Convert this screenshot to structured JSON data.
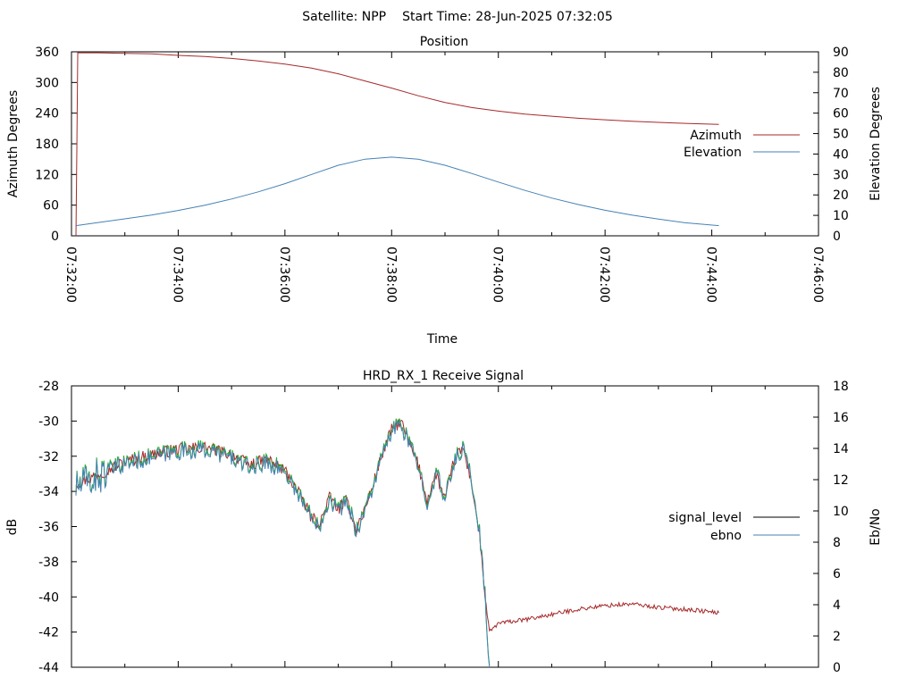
{
  "header": {
    "satellite_label": "Satellite: NPP",
    "start_time_label": "Start Time: 28-Jun-2025 07:32:05"
  },
  "colors": {
    "azimuth": "#a52a2a",
    "elevation": "#4682b4",
    "signal_level": "#a52a2a",
    "ebno_green": "#22b022",
    "ebno": "#4682b4",
    "legend_signal_level": "#000000"
  },
  "chart_data": [
    {
      "type": "line",
      "title": "Position",
      "xlabel": "Time",
      "ylabel": "Azimuth Degrees",
      "y2label": "Elevation Degrees",
      "xlim": [
        "07:32:00",
        "07:46:00"
      ],
      "ylim": [
        0,
        360
      ],
      "y2lim": [
        0,
        90
      ],
      "x_ticks": [
        "07:32:00",
        "07:34:00",
        "07:36:00",
        "07:38:00",
        "07:40:00",
        "07:42:00",
        "07:44:00",
        "07:46:00"
      ],
      "y_ticks": [
        "0",
        "60",
        "120",
        "180",
        "240",
        "300",
        "360"
      ],
      "y2_ticks": [
        "0",
        "10",
        "20",
        "30",
        "40",
        "50",
        "60",
        "70",
        "80",
        "90"
      ],
      "legend_position": "right",
      "series": [
        {
          "name": "Azimuth",
          "axis": "y",
          "points": [
            [
              "07:32:05",
              0
            ],
            [
              "07:32:06",
              170
            ],
            [
              "07:32:07",
              358
            ],
            [
              "07:32:30",
              358
            ],
            [
              "07:33:00",
              357
            ],
            [
              "07:33:30",
              356
            ],
            [
              "07:34:00",
              353
            ],
            [
              "07:34:30",
              351
            ],
            [
              "07:35:00",
              347
            ],
            [
              "07:35:30",
              342
            ],
            [
              "07:36:00",
              336
            ],
            [
              "07:36:30",
              328
            ],
            [
              "07:37:00",
              317
            ],
            [
              "07:37:30",
              303
            ],
            [
              "07:38:00",
              289
            ],
            [
              "07:38:30",
              274
            ],
            [
              "07:39:00",
              261
            ],
            [
              "07:39:30",
              251
            ],
            [
              "07:40:00",
              244
            ],
            [
              "07:40:30",
              238
            ],
            [
              "07:41:00",
              234
            ],
            [
              "07:41:30",
              230
            ],
            [
              "07:42:00",
              227
            ],
            [
              "07:42:30",
              224
            ],
            [
              "07:43:00",
              222
            ],
            [
              "07:43:30",
              220
            ],
            [
              "07:44:08",
              218
            ]
          ]
        },
        {
          "name": "Elevation",
          "axis": "y2",
          "points": [
            [
              "07:32:05",
              5
            ],
            [
              "07:32:30",
              6.5
            ],
            [
              "07:33:00",
              8.3
            ],
            [
              "07:33:30",
              10.2
            ],
            [
              "07:34:00",
              12.4
            ],
            [
              "07:34:30",
              15
            ],
            [
              "07:35:00",
              18
            ],
            [
              "07:35:30",
              21.5
            ],
            [
              "07:36:00",
              25.5
            ],
            [
              "07:36:30",
              30
            ],
            [
              "07:37:00",
              34.5
            ],
            [
              "07:37:30",
              37.5
            ],
            [
              "07:38:00",
              38.5
            ],
            [
              "07:38:30",
              37.5
            ],
            [
              "07:39:00",
              34.5
            ],
            [
              "07:39:30",
              30.5
            ],
            [
              "07:40:00",
              26.3
            ],
            [
              "07:40:30",
              22.2
            ],
            [
              "07:41:00",
              18.5
            ],
            [
              "07:41:30",
              15.3
            ],
            [
              "07:42:00",
              12.5
            ],
            [
              "07:42:30",
              10.2
            ],
            [
              "07:43:00",
              8.2
            ],
            [
              "07:43:30",
              6.4
            ],
            [
              "07:44:08",
              5
            ]
          ]
        }
      ]
    },
    {
      "type": "line",
      "title": "HRD_RX_1 Receive Signal",
      "xlabel": "",
      "ylabel": "dB",
      "y2label": "Eb/No",
      "xlim": [
        "07:32:00",
        "07:46:00"
      ],
      "ylim": [
        -44,
        -28
      ],
      "y2lim": [
        0,
        18
      ],
      "y_ticks": [
        "-44",
        "-42",
        "-40",
        "-38",
        "-36",
        "-34",
        "-32",
        "-30",
        "-28"
      ],
      "y2_ticks": [
        "0",
        "2",
        "4",
        "6",
        "8",
        "10",
        "12",
        "14",
        "16",
        "18"
      ],
      "legend_position": "right",
      "series": [
        {
          "name": "signal_level",
          "axis": "y",
          "points": [
            [
              "07:32:05",
              -33.5
            ],
            [
              "07:32:20",
              -33.3
            ],
            [
              "07:32:40",
              -32.8
            ],
            [
              "07:33:00",
              -32.3
            ],
            [
              "07:33:30",
              -31.9
            ],
            [
              "07:34:00",
              -31.6
            ],
            [
              "07:34:30",
              -31.5
            ],
            [
              "07:35:00",
              -31.9
            ],
            [
              "07:35:20",
              -32.5
            ],
            [
              "07:35:40",
              -32.2
            ],
            [
              "07:36:00",
              -32.8
            ],
            [
              "07:36:20",
              -34.5
            ],
            [
              "07:36:30",
              -35.5
            ],
            [
              "07:36:40",
              -35.8
            ],
            [
              "07:36:50",
              -34.3
            ],
            [
              "07:37:00",
              -35
            ],
            [
              "07:37:10",
              -34.5
            ],
            [
              "07:37:20",
              -36.2
            ],
            [
              "07:37:30",
              -35
            ],
            [
              "07:37:40",
              -33.5
            ],
            [
              "07:37:50",
              -31.8
            ],
            [
              "07:38:00",
              -30.5
            ],
            [
              "07:38:10",
              -30
            ],
            [
              "07:38:20",
              -31.3
            ],
            [
              "07:38:30",
              -32.5
            ],
            [
              "07:38:40",
              -34.5
            ],
            [
              "07:38:50",
              -33
            ],
            [
              "07:39:00",
              -34.5
            ],
            [
              "07:39:10",
              -32.3
            ],
            [
              "07:39:20",
              -31.5
            ],
            [
              "07:39:30",
              -33.5
            ],
            [
              "07:39:40",
              -37
            ],
            [
              "07:39:45",
              -40
            ],
            [
              "07:39:50",
              -42
            ],
            [
              "07:40:00",
              -41.5
            ],
            [
              "07:40:30",
              -41.3
            ],
            [
              "07:41:00",
              -41
            ],
            [
              "07:41:30",
              -40.7
            ],
            [
              "07:42:00",
              -40.5
            ],
            [
              "07:42:30",
              -40.4
            ],
            [
              "07:43:00",
              -40.6
            ],
            [
              "07:43:30",
              -40.7
            ],
            [
              "07:44:08",
              -40.9
            ]
          ]
        },
        {
          "name": "ebno",
          "axis": "y2",
          "points": [
            [
              "07:32:05",
              11.5
            ],
            [
              "07:32:20",
              11.9
            ],
            [
              "07:32:40",
              12.5
            ],
            [
              "07:33:00",
              13
            ],
            [
              "07:33:30",
              13.4
            ],
            [
              "07:34:00",
              13.8
            ],
            [
              "07:34:30",
              13.9
            ],
            [
              "07:35:00",
              13.4
            ],
            [
              "07:35:20",
              12.7
            ],
            [
              "07:35:40",
              13.1
            ],
            [
              "07:36:00",
              12.5
            ],
            [
              "07:36:20",
              10.6
            ],
            [
              "07:36:30",
              9.5
            ],
            [
              "07:36:40",
              9.2
            ],
            [
              "07:36:50",
              10.8
            ],
            [
              "07:37:00",
              10
            ],
            [
              "07:37:10",
              10.6
            ],
            [
              "07:37:20",
              8.7
            ],
            [
              "07:37:30",
              10
            ],
            [
              "07:37:40",
              11.7
            ],
            [
              "07:37:50",
              13.6
            ],
            [
              "07:38:00",
              15
            ],
            [
              "07:38:10",
              15.6
            ],
            [
              "07:38:20",
              14.2
            ],
            [
              "07:38:30",
              12.8
            ],
            [
              "07:38:40",
              10.6
            ],
            [
              "07:38:50",
              12.4
            ],
            [
              "07:39:00",
              10.6
            ],
            [
              "07:39:10",
              13.1
            ],
            [
              "07:39:20",
              14
            ],
            [
              "07:39:30",
              12
            ],
            [
              "07:39:40",
              8
            ],
            [
              "07:39:45",
              4.5
            ],
            [
              "07:39:50",
              0
            ]
          ]
        }
      ]
    }
  ]
}
